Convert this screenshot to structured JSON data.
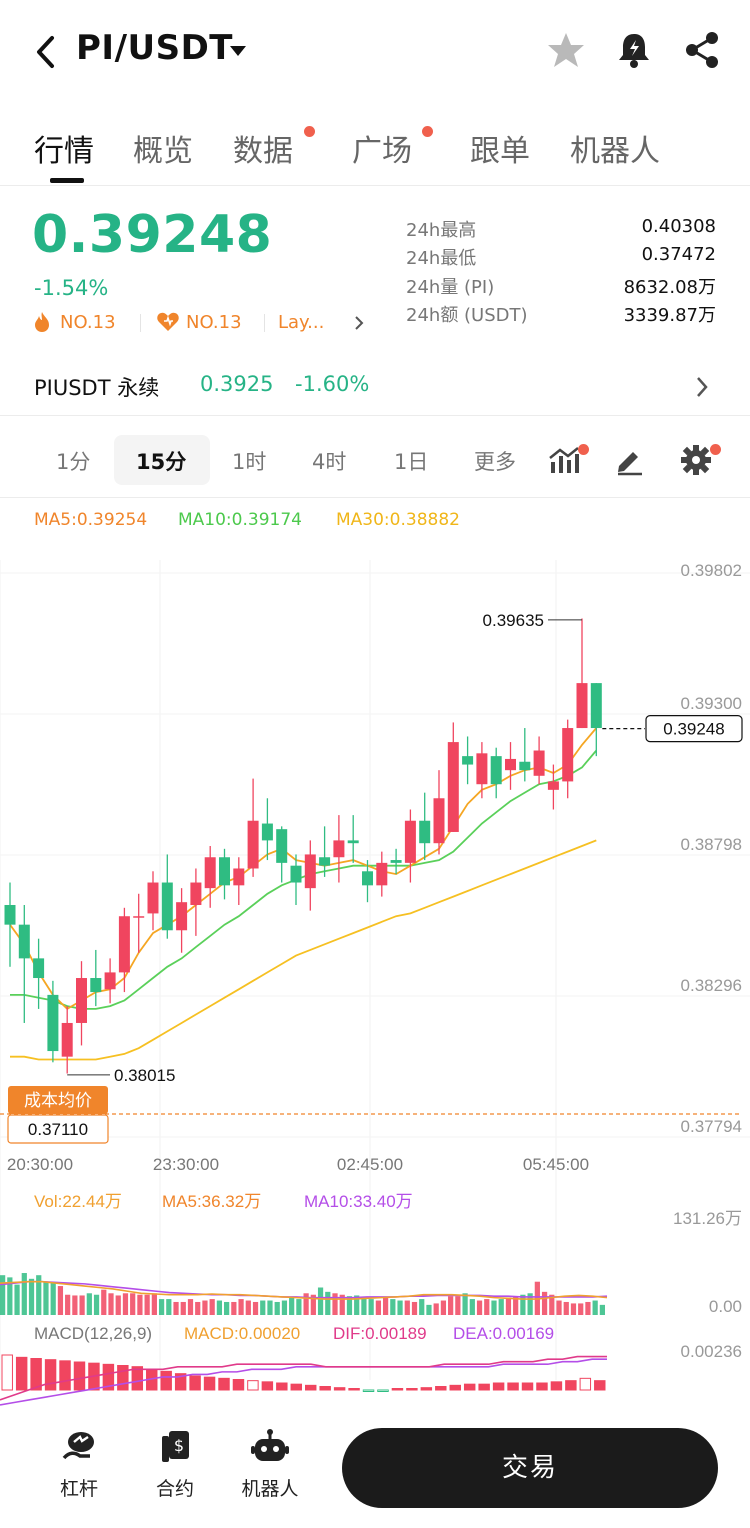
{
  "header": {
    "title": "PI/USDT"
  },
  "tabs": [
    {
      "label": "行情",
      "active": true,
      "dot": false
    },
    {
      "label": "概览",
      "active": false,
      "dot": false
    },
    {
      "label": "数据",
      "active": false,
      "dot": true
    },
    {
      "label": "广场",
      "active": false,
      "dot": true
    },
    {
      "label": "跟单",
      "active": false,
      "dot": false
    },
    {
      "label": "机器人",
      "active": false,
      "dot": false
    }
  ],
  "ticker": {
    "price": "0.39248",
    "change": "-1.54%",
    "rank1": "NO.13",
    "rank2": "NO.13",
    "rank3": "Lay..."
  },
  "stats": [
    {
      "label": "24h最高",
      "value": "0.40308"
    },
    {
      "label": "24h最低",
      "value": "0.37472"
    },
    {
      "label": "24h量 (PI)",
      "value": "8632.08万"
    },
    {
      "label": "24h额 (USDT)",
      "value": "3339.87万"
    }
  ],
  "perpetual": {
    "name": "PIUSDT 永续",
    "price": "0.3925",
    "change": "-1.60%"
  },
  "intervals": [
    {
      "label": "1分",
      "active": false
    },
    {
      "label": "15分",
      "active": true
    },
    {
      "label": "1时",
      "active": false
    },
    {
      "label": "4时",
      "active": false
    },
    {
      "label": "1日",
      "active": false
    },
    {
      "label": "更多",
      "active": false
    }
  ],
  "ma_legend": {
    "ma5": "MA5:0.39254",
    "ma10": "MA10:0.39174",
    "ma30": "MA30:0.38882"
  },
  "colors": {
    "up": "#f0455f",
    "down": "#2fbc82",
    "ma5": "#f5a623",
    "ma10": "#5ad05a",
    "ma30": "#f6c022",
    "purple": "#b44ee8",
    "accent_orange": "#f0852b"
  },
  "chart_data": {
    "type": "candlestick",
    "interval": "15分",
    "price_axis": [
      "0.39802",
      "0.39300",
      "0.38798",
      "0.38296",
      "0.37794"
    ],
    "ylim": [
      0.37794,
      0.39802
    ],
    "time_ticks": [
      "20:30:00",
      "23:30:00",
      "02:45:00",
      "05:45:00"
    ],
    "last_price_label": "0.39248",
    "high_label": "0.39635",
    "low_label": "0.38015",
    "cost_label": "成本均价",
    "cost_price": "0.37110",
    "candles": [
      [
        0.3862,
        0.3855,
        0.387,
        0.384
      ],
      [
        0.3855,
        0.3843,
        0.3862,
        0.382
      ],
      [
        0.3843,
        0.3836,
        0.385,
        0.3825
      ],
      [
        0.383,
        0.381,
        0.3835,
        0.3806
      ],
      [
        0.3808,
        0.382,
        0.3826,
        0.3802
      ],
      [
        0.382,
        0.3836,
        0.3842,
        0.3812
      ],
      [
        0.3836,
        0.3831,
        0.3846,
        0.3826
      ],
      [
        0.3832,
        0.3838,
        0.3843,
        0.3827
      ],
      [
        0.3838,
        0.3858,
        0.3861,
        0.3831
      ],
      [
        0.3858,
        0.3858,
        0.3866,
        0.3845
      ],
      [
        0.3859,
        0.387,
        0.3874,
        0.3853
      ],
      [
        0.387,
        0.3853,
        0.388,
        0.385
      ],
      [
        0.3853,
        0.3863,
        0.3868,
        0.3845
      ],
      [
        0.3862,
        0.387,
        0.3875,
        0.3851
      ],
      [
        0.3868,
        0.3879,
        0.3883,
        0.3861
      ],
      [
        0.3879,
        0.3869,
        0.3882,
        0.3864
      ],
      [
        0.3869,
        0.3875,
        0.3879,
        0.3862
      ],
      [
        0.3875,
        0.3892,
        0.3907,
        0.3872
      ],
      [
        0.3891,
        0.3885,
        0.39,
        0.3878
      ],
      [
        0.3889,
        0.3877,
        0.389,
        0.387
      ],
      [
        0.3876,
        0.387,
        0.388,
        0.3862
      ],
      [
        0.3868,
        0.388,
        0.3885,
        0.386
      ],
      [
        0.3879,
        0.3876,
        0.389,
        0.3872
      ],
      [
        0.3879,
        0.3885,
        0.3894,
        0.387
      ],
      [
        0.3885,
        0.3884,
        0.3894,
        0.3877
      ],
      [
        0.3874,
        0.3869,
        0.3878,
        0.3863
      ],
      [
        0.3869,
        0.3877,
        0.3881,
        0.3865
      ],
      [
        0.3878,
        0.3877,
        0.3882,
        0.3873
      ],
      [
        0.3877,
        0.3892,
        0.3896,
        0.387
      ],
      [
        0.3892,
        0.3884,
        0.3902,
        0.3878
      ],
      [
        0.3884,
        0.39,
        0.391,
        0.388
      ],
      [
        0.3888,
        0.392,
        0.3927,
        0.3888
      ],
      [
        0.3915,
        0.3912,
        0.3922,
        0.3905
      ],
      [
        0.3905,
        0.3916,
        0.392,
        0.39
      ],
      [
        0.3915,
        0.3905,
        0.3918,
        0.39
      ],
      [
        0.391,
        0.3914,
        0.392,
        0.3903
      ],
      [
        0.3913,
        0.391,
        0.3925,
        0.3906
      ],
      [
        0.3908,
        0.3917,
        0.3922,
        0.3905
      ],
      [
        0.3903,
        0.3906,
        0.3912,
        0.3896
      ],
      [
        0.3906,
        0.3925,
        0.3928,
        0.39
      ],
      [
        0.3925,
        0.3941,
        0.3964,
        0.3925
      ],
      [
        0.3941,
        0.3925,
        0.3941,
        0.3915
      ]
    ],
    "ma5": [
      0.3855,
      0.3848,
      0.3838,
      0.383,
      0.3825,
      0.3828,
      0.3831,
      0.3832,
      0.3836,
      0.3845,
      0.3852,
      0.3855,
      0.3858,
      0.3862,
      0.3866,
      0.387,
      0.3872,
      0.3876,
      0.388,
      0.3882,
      0.3878,
      0.3877,
      0.3876,
      0.3877,
      0.3878,
      0.3876,
      0.3874,
      0.3873,
      0.3876,
      0.3879,
      0.3882,
      0.389,
      0.3898,
      0.3903,
      0.3905,
      0.3908,
      0.391,
      0.3911,
      0.3909,
      0.3912,
      0.3919,
      0.3925
    ],
    "ma10": [
      0.383,
      0.383,
      0.3829,
      0.3828,
      0.3826,
      0.3825,
      0.3825,
      0.3826,
      0.3828,
      0.3832,
      0.3836,
      0.384,
      0.3843,
      0.3847,
      0.3851,
      0.3855,
      0.3858,
      0.3862,
      0.3866,
      0.3869,
      0.3871,
      0.3873,
      0.3874,
      0.3875,
      0.3876,
      0.3876,
      0.3876,
      0.3876,
      0.3876,
      0.3877,
      0.3878,
      0.3881,
      0.3886,
      0.3891,
      0.3895,
      0.3899,
      0.3902,
      0.3905,
      0.3906,
      0.3908,
      0.3911,
      0.3917
    ],
    "ma30": [
      0.3808,
      0.3808,
      0.3807,
      0.3807,
      0.3807,
      0.3807,
      0.3807,
      0.3808,
      0.3809,
      0.3811,
      0.3814,
      0.3817,
      0.382,
      0.3823,
      0.3826,
      0.3829,
      0.3832,
      0.3835,
      0.3838,
      0.3841,
      0.3844,
      0.3846,
      0.3848,
      0.385,
      0.3852,
      0.3854,
      0.3856,
      0.3858,
      0.3859,
      0.3861,
      0.3863,
      0.3865,
      0.3867,
      0.3869,
      0.3871,
      0.3873,
      0.3875,
      0.3877,
      0.3879,
      0.3881,
      0.3883,
      0.3885
    ],
    "volume": {
      "legend_vol": "Vol:22.44万",
      "legend_ma5": "MA5:36.32万",
      "legend_ma10": "MA10:33.40万",
      "axis_max": "131.26万",
      "axis_zero": "0.00",
      "ymax": 131.26,
      "bars": [
        55,
        52,
        42,
        58,
        50,
        55,
        45,
        45,
        40,
        28,
        27,
        27,
        30,
        28,
        35,
        30,
        27,
        30,
        30,
        28,
        28,
        30,
        22,
        22,
        18,
        18,
        22,
        18,
        20,
        22,
        20,
        18,
        18,
        22,
        20,
        18,
        20,
        20,
        18,
        20,
        24,
        22,
        30,
        28,
        38,
        32,
        30,
        28,
        26,
        27,
        24,
        22,
        20,
        24,
        22,
        20,
        20,
        18,
        22,
        14,
        16,
        20,
        26,
        26,
        30,
        22,
        20,
        22,
        20,
        22,
        24,
        26,
        28,
        30,
        46,
        32,
        28,
        20,
        18,
        16,
        16,
        18,
        20,
        14
      ],
      "ma5_line": [
        44,
        45,
        46,
        46,
        44,
        42,
        40,
        38,
        36,
        33,
        30,
        29,
        28,
        28,
        28,
        29,
        28,
        28,
        27,
        26,
        25,
        24,
        23,
        22,
        22,
        22,
        23,
        24,
        25,
        26,
        28,
        28,
        28,
        27,
        26,
        24,
        23,
        22,
        22,
        24,
        26,
        27,
        26,
        24
      ],
      "ma10_line": [
        42,
        44,
        46,
        46,
        45,
        44,
        43,
        41,
        39,
        37,
        35,
        33,
        31,
        30,
        29,
        28,
        28,
        27,
        27,
        26,
        25,
        25,
        24,
        24,
        24,
        24,
        25,
        25,
        25,
        26,
        26,
        27,
        27,
        27,
        27,
        26,
        26,
        25,
        25,
        25,
        25,
        25,
        25,
        26
      ]
    },
    "macd": {
      "legend_title": "MACD(12,26,9)",
      "legend_macd": "MACD:0.00020",
      "legend_dif": "DIF:0.00189",
      "legend_dea": "DEA:0.00169",
      "axis_max": "0.00236",
      "hist": [
        0.0003,
        0.00028,
        0.00027,
        0.00026,
        0.00025,
        0.00024,
        0.00023,
        0.00022,
        0.00021,
        0.0002,
        0.00018,
        0.00016,
        0.00014,
        0.00012,
        0.00011,
        0.0001,
        9e-05,
        8e-05,
        7e-05,
        6e-05,
        5e-05,
        4e-05,
        3e-05,
        2e-05,
        1e-05,
        -1e-05,
        -1e-05,
        1e-05,
        1e-05,
        2e-05,
        3e-05,
        4e-05,
        5e-05,
        5e-05,
        6e-05,
        6e-05,
        6e-05,
        6e-05,
        7e-05,
        8e-05,
        0.0001,
        8e-05
      ],
      "hist_up": [
        false,
        true,
        true,
        true,
        true,
        true,
        true,
        true,
        true,
        true,
        true,
        true,
        true,
        true,
        true,
        true,
        true,
        false,
        true,
        true,
        true,
        true,
        true,
        true,
        true,
        false,
        false,
        true,
        true,
        true,
        true,
        true,
        true,
        true,
        true,
        true,
        true,
        true,
        true,
        true,
        false,
        true
      ],
      "dif": [
        0.0004,
        0.0006,
        0.0008,
        0.001,
        0.0011,
        0.0012,
        0.0013,
        0.0014,
        0.0015,
        0.0016,
        0.0016,
        0.0016,
        0.0017,
        0.0017,
        0.0017,
        0.0017,
        0.0018,
        0.0018,
        0.0018,
        0.0018,
        0.0018,
        0.0018,
        0.0017,
        0.0017,
        0.0017,
        0.0017,
        0.0017,
        0.0017,
        0.0017,
        0.0017,
        0.0018,
        0.0018,
        0.0018,
        0.0018,
        0.0019,
        0.0019,
        0.0019,
        0.002,
        0.002,
        0.0021,
        0.0021,
        0.0021
      ],
      "dea": [
        0.0002,
        0.0003,
        0.0004,
        0.0005,
        0.0006,
        0.0007,
        0.0008,
        0.0009,
        0.001,
        0.0011,
        0.0012,
        0.0013,
        0.0013,
        0.0014,
        0.0014,
        0.0015,
        0.0015,
        0.0016,
        0.0016,
        0.0016,
        0.0017,
        0.0017,
        0.0017,
        0.0017,
        0.0017,
        0.0017,
        0.0017,
        0.0017,
        0.0017,
        0.0017,
        0.0017,
        0.0017,
        0.0017,
        0.0017,
        0.0018,
        0.0018,
        0.0018,
        0.0018,
        0.0019,
        0.0019,
        0.002,
        0.002
      ]
    }
  },
  "bottom_bar": {
    "items": [
      {
        "label": "杠杆",
        "icon": "leverage-icon"
      },
      {
        "label": "合约",
        "icon": "contract-icon"
      },
      {
        "label": "机器人",
        "icon": "robot-icon"
      }
    ],
    "trade_label": "交易"
  }
}
